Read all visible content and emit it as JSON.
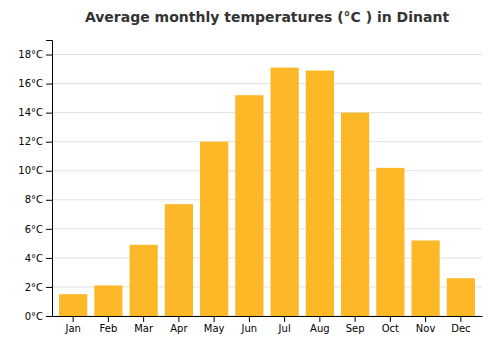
{
  "chart_data": {
    "type": "bar",
    "title": "Average monthly temperatures (°C ) in Dinant",
    "categories": [
      "Jan",
      "Feb",
      "Mar",
      "Apr",
      "May",
      "Jun",
      "Jul",
      "Aug",
      "Sep",
      "Oct",
      "Nov",
      "Dec"
    ],
    "values": [
      1.5,
      2.1,
      4.9,
      7.7,
      12.0,
      15.2,
      17.1,
      16.9,
      14.0,
      10.2,
      5.2,
      2.6
    ],
    "color": "#FDB827",
    "ylim": [
      0,
      19
    ],
    "yticks": [
      {
        "value": 0,
        "label": "0°C"
      },
      {
        "value": 2,
        "label": "2°C"
      },
      {
        "value": 4,
        "label": "4°C"
      },
      {
        "value": 6,
        "label": "6°C"
      },
      {
        "value": 8,
        "label": "8°C"
      },
      {
        "value": 10,
        "label": "10°C"
      },
      {
        "value": 12,
        "label": "12°C"
      },
      {
        "value": 14,
        "label": "14°C"
      },
      {
        "value": 16,
        "label": "16°C"
      },
      {
        "value": 18,
        "label": "18°C"
      }
    ],
    "grid": true
  }
}
